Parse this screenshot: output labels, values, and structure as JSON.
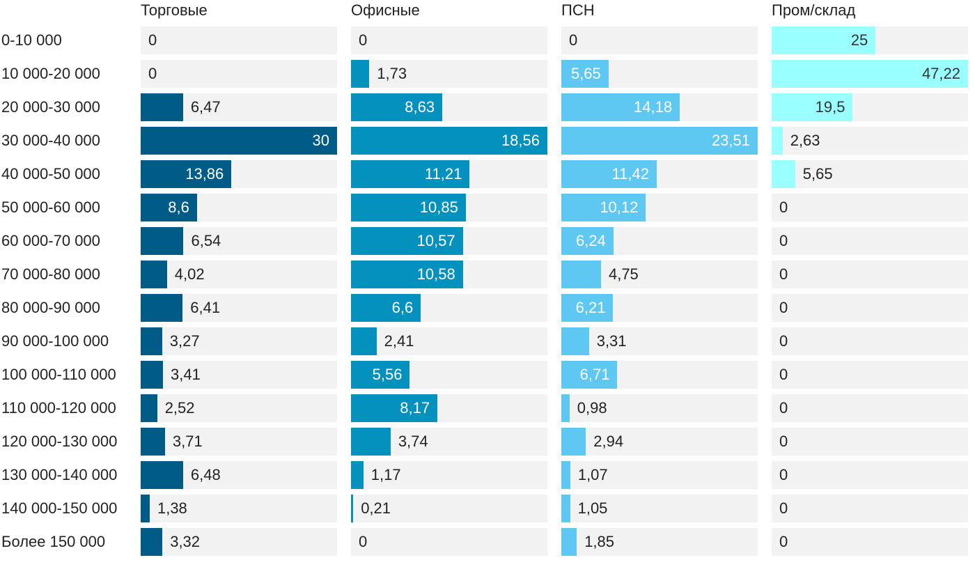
{
  "chart_data": {
    "type": "bar",
    "orientation": "horizontal",
    "layout": "small-multiples",
    "categories": [
      "0-10 000",
      "10 000-20 000",
      "20 000-30 000",
      "30 000-40 000",
      "40 000-50 000",
      "50 000-60 000",
      "60 000-70 000",
      "70 000-80 000",
      "80 000-90 000",
      "90 000-100 000",
      "100 000-110 000",
      "110 000-120 000",
      "120 000-130 000",
      "130 000-140 000",
      "140 000-150 000",
      "Более 150 000"
    ],
    "series": [
      {
        "name": "Торговые",
        "color": "#005b87",
        "max": 30,
        "values": [
          0,
          0,
          6.47,
          30,
          13.86,
          8.6,
          6.54,
          4.02,
          6.41,
          3.27,
          3.41,
          2.52,
          3.71,
          6.48,
          1.38,
          3.32
        ],
        "labels": [
          "0",
          "0",
          "6,47",
          "30",
          "13,86",
          "8,6",
          "6,54",
          "4,02",
          "6,41",
          "3,27",
          "3,41",
          "2,52",
          "3,71",
          "6,48",
          "1,38",
          "3,32"
        ]
      },
      {
        "name": "Офисные",
        "color": "#0591bd",
        "max": 18.56,
        "values": [
          0,
          1.73,
          8.63,
          18.56,
          11.21,
          10.85,
          10.57,
          10.58,
          6.6,
          2.41,
          5.56,
          8.17,
          3.74,
          1.17,
          0.21,
          0
        ],
        "labels": [
          "0",
          "1,73",
          "8,63",
          "18,56",
          "11,21",
          "10,85",
          "10,57",
          "10,58",
          "6,6",
          "2,41",
          "5,56",
          "8,17",
          "3,74",
          "1,17",
          "0,21",
          "0"
        ]
      },
      {
        "name": "ПСН",
        "color": "#5ec8f2",
        "max": 23.51,
        "values": [
          0,
          5.65,
          14.18,
          23.51,
          11.42,
          10.12,
          6.24,
          4.75,
          6.21,
          3.31,
          6.71,
          0.98,
          2.94,
          1.07,
          1.05,
          1.85
        ],
        "labels": [
          "0",
          "5,65",
          "14,18",
          "23,51",
          "11,42",
          "10,12",
          "6,24",
          "4,75",
          "6,21",
          "3,31",
          "6,71",
          "0,98",
          "2,94",
          "1,07",
          "1,05",
          "1,85"
        ]
      },
      {
        "name": "Пром/склад",
        "color": "#99ffff",
        "max": 47.22,
        "values": [
          25,
          47.22,
          19.5,
          2.63,
          5.65,
          0,
          0,
          0,
          0,
          0,
          0,
          0,
          0,
          0,
          0,
          0
        ],
        "labels": [
          "25",
          "47,22",
          "19,5",
          "2,63",
          "5,65",
          "0",
          "0",
          "0",
          "0",
          "0",
          "0",
          "0",
          "0",
          "0",
          "0",
          "0"
        ]
      }
    ],
    "xlabel": "",
    "ylabel": "",
    "grid": false,
    "legend": "none"
  }
}
